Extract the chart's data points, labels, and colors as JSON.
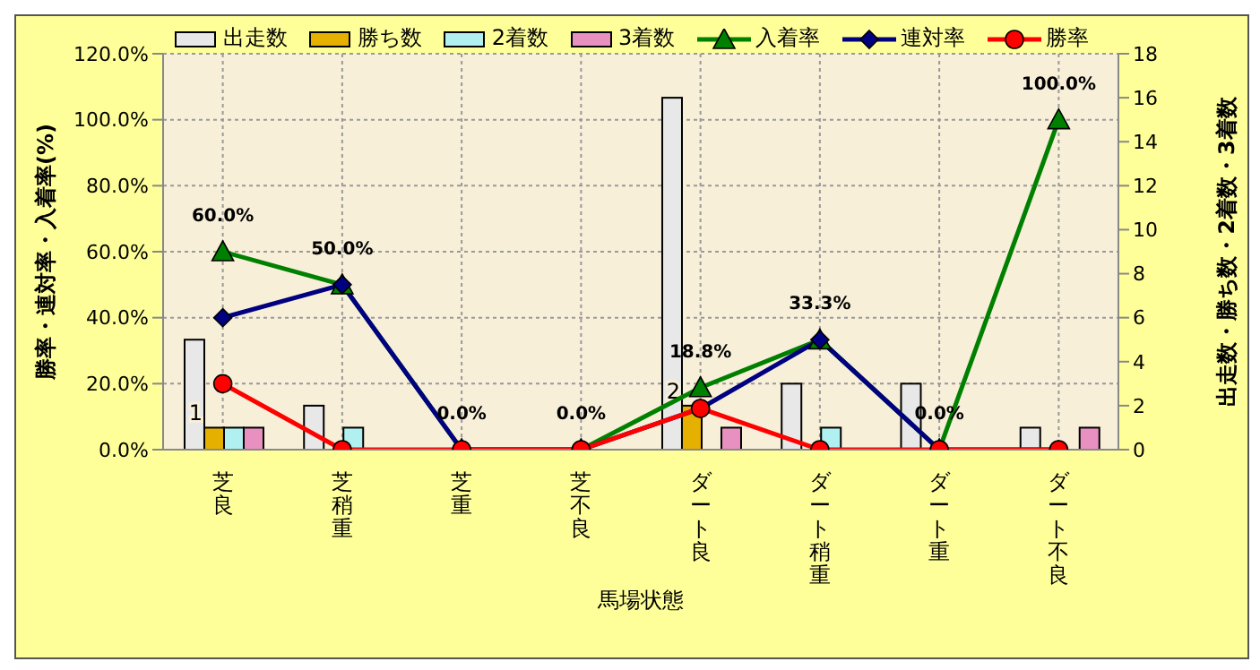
{
  "chart_data": {
    "type": "bar",
    "xlabel": "馬場状態",
    "ylabel": "勝率・連対率・入着率(%)",
    "y2label": "出走数・勝ち数・2着数・3着数",
    "categories": [
      "芝良",
      "芝稍重",
      "芝重",
      "芝不良",
      "ダート良",
      "ダート稍重",
      "ダート重",
      "ダート不良"
    ],
    "series": [
      {
        "name": "出走数",
        "axis": "y2",
        "color": "#e8e8e8",
        "values": [
          5,
          2,
          0,
          0,
          16,
          3,
          3,
          1
        ]
      },
      {
        "name": "勝ち数",
        "axis": "y2",
        "color": "#e6b000",
        "values": [
          1,
          0,
          0,
          0,
          2,
          0,
          0,
          0
        ],
        "value_labels": [
          "1",
          null,
          null,
          null,
          "2",
          null,
          null,
          null
        ]
      },
      {
        "name": "2着数",
        "axis": "y2",
        "color": "#b0f0f0",
        "values": [
          1,
          1,
          0,
          0,
          0,
          1,
          0,
          0
        ]
      },
      {
        "name": "3着数",
        "axis": "y2",
        "color": "#e890c0",
        "values": [
          1,
          0,
          0,
          0,
          1,
          0,
          0,
          1
        ]
      },
      {
        "name": "入着率",
        "type": "line",
        "color": "#008000",
        "marker": "triangle",
        "values": [
          60,
          50,
          0,
          0,
          18.8,
          33.3,
          0,
          100
        ],
        "value_labels": [
          "60.0%",
          "50.0%",
          "0.0%",
          "0.0%",
          "18.8%",
          "33.3%",
          "0.0%",
          "100.0%"
        ]
      },
      {
        "name": "連対率",
        "type": "line",
        "color": "#000080",
        "marker": "diamond",
        "values": [
          40,
          50,
          0,
          0,
          12.5,
          33.3,
          0,
          0
        ]
      },
      {
        "name": "勝率",
        "type": "line",
        "color": "#ff0000",
        "marker": "circle",
        "values": [
          20,
          0,
          0,
          0,
          12.5,
          0,
          0,
          0
        ]
      }
    ],
    "ylim": [
      0,
      120
    ],
    "yticks": [
      {
        "value": 0,
        "label": "0.0%"
      },
      {
        "value": 20,
        "label": "20.0%"
      },
      {
        "value": 40,
        "label": "40.0%"
      },
      {
        "value": 60,
        "label": "60.0%"
      },
      {
        "value": 80,
        "label": "80.0%"
      },
      {
        "value": 100,
        "label": "100.0%"
      },
      {
        "value": 120,
        "label": "120.0%"
      }
    ],
    "y2lim": [
      0,
      18
    ],
    "y2ticks": [
      0,
      2,
      4,
      6,
      8,
      10,
      12,
      14,
      16,
      18
    ],
    "grid": true,
    "legend": "top"
  }
}
